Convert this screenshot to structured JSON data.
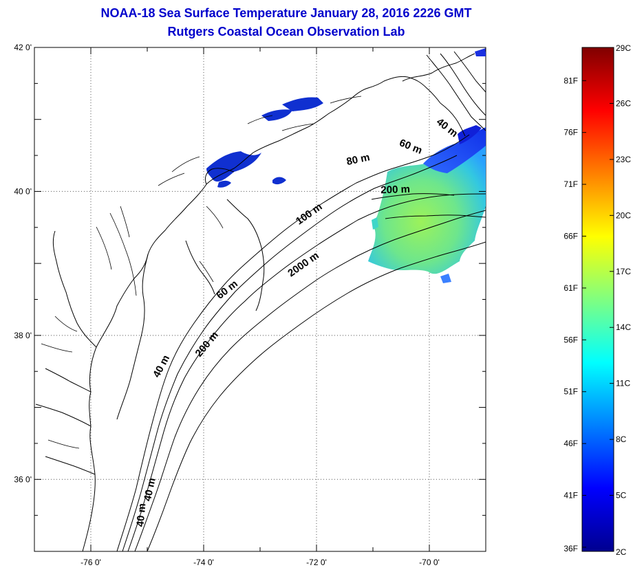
{
  "header": {
    "title_line1": "NOAA-18 Sea Surface Temperature January 28, 2016 2226 GMT",
    "title_line2": "Rutgers Coastal Ocean Observation Lab",
    "title_color": "#0000cc"
  },
  "map": {
    "lon_range": [
      -77,
      -69
    ],
    "lat_range": [
      35,
      42
    ],
    "lon_ticks": [
      {
        "value": -76,
        "label": "-76 0'"
      },
      {
        "value": -74,
        "label": "-74 0'"
      },
      {
        "value": -72,
        "label": "-72 0'"
      },
      {
        "value": -70,
        "label": "-70 0'"
      }
    ],
    "lat_ticks": [
      {
        "value": 42,
        "label": "42 0'"
      },
      {
        "value": 40,
        "label": "40 0'"
      },
      {
        "value": 38,
        "label": "38 0'"
      },
      {
        "value": 36,
        "label": "36 0'"
      }
    ],
    "grid": "dotted",
    "contour_labels": [
      {
        "text": "40 m",
        "lon": -69.72,
        "lat": 40.85,
        "angle": 38
      },
      {
        "text": "60 m",
        "lon": -70.35,
        "lat": 40.58,
        "angle": 22
      },
      {
        "text": "80 m",
        "lon": -71.25,
        "lat": 40.4,
        "angle": -12
      },
      {
        "text": "200 m",
        "lon": -70.6,
        "lat": 39.98,
        "angle": -2
      },
      {
        "text": "100 m",
        "lon": -72.1,
        "lat": 39.65,
        "angle": -35
      },
      {
        "text": "2000 m",
        "lon": -72.2,
        "lat": 38.95,
        "angle": -35
      },
      {
        "text": "60 m",
        "lon": -73.55,
        "lat": 38.6,
        "angle": -38
      },
      {
        "text": "200 m",
        "lon": -73.9,
        "lat": 37.85,
        "angle": -50
      },
      {
        "text": "40 m",
        "lon": -74.7,
        "lat": 37.55,
        "angle": -62
      },
      {
        "text": "40 m",
        "lon": -74.9,
        "lat": 35.85,
        "angle": -78
      },
      {
        "text": "40 m",
        "lon": -75.05,
        "lat": 35.5,
        "angle": -85
      }
    ]
  },
  "colorbar": {
    "celsius_labels": [
      {
        "value": 29,
        "label": "29C"
      },
      {
        "value": 26,
        "label": "26C"
      },
      {
        "value": 23,
        "label": "23C"
      },
      {
        "value": 20,
        "label": "20C"
      },
      {
        "value": 17,
        "label": "17C"
      },
      {
        "value": 14,
        "label": "14C"
      },
      {
        "value": 11,
        "label": "11C"
      },
      {
        "value": 8,
        "label": "8C"
      },
      {
        "value": 5,
        "label": "5C"
      },
      {
        "value": 2,
        "label": "2C"
      }
    ],
    "fahrenheit_labels": [
      {
        "value": 81,
        "label": "81F"
      },
      {
        "value": 76,
        "label": "76F"
      },
      {
        "value": 71,
        "label": "71F"
      },
      {
        "value": 66,
        "label": "66F"
      },
      {
        "value": 61,
        "label": "61F"
      },
      {
        "value": 56,
        "label": "56F"
      },
      {
        "value": 51,
        "label": "51F"
      },
      {
        "value": 46,
        "label": "46F"
      },
      {
        "value": 41,
        "label": "41F"
      },
      {
        "value": 36,
        "label": "36F"
      }
    ],
    "range_c": [
      2,
      29
    ],
    "colors": [
      "#00008f",
      "#0000ff",
      "#0080ff",
      "#00ffff",
      "#80ff80",
      "#ffff00",
      "#ff8000",
      "#ff0000",
      "#800000"
    ]
  }
}
